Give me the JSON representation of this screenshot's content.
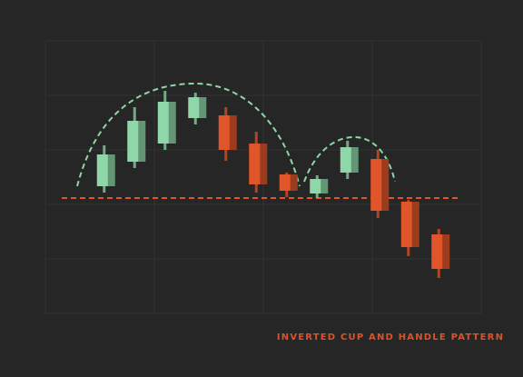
{
  "chart_data": {
    "type": "candlestick",
    "title": "INVERTED CUP AND HANDLE PATTERN",
    "categories": [
      null,
      null,
      null,
      null,
      null,
      null,
      null,
      null,
      null,
      null,
      null,
      null
    ],
    "open": [
      115,
      142,
      162,
      190,
      193,
      162,
      128,
      107,
      130,
      145,
      98,
      62
    ],
    "high": [
      160,
      202,
      220,
      218,
      202,
      175,
      130,
      127,
      165,
      155,
      100,
      68
    ],
    "low": [
      108,
      135,
      155,
      183,
      143,
      108,
      103,
      102,
      123,
      80,
      38,
      14
    ],
    "close": [
      150,
      187,
      208,
      213,
      155,
      117,
      110,
      123,
      158,
      88,
      48,
      24
    ],
    "up_color": "#8fd6a8",
    "down_color": "#e0552a",
    "support": 102,
    "support_color": "#e0552a",
    "ylim": [
      0,
      260
    ]
  }
}
